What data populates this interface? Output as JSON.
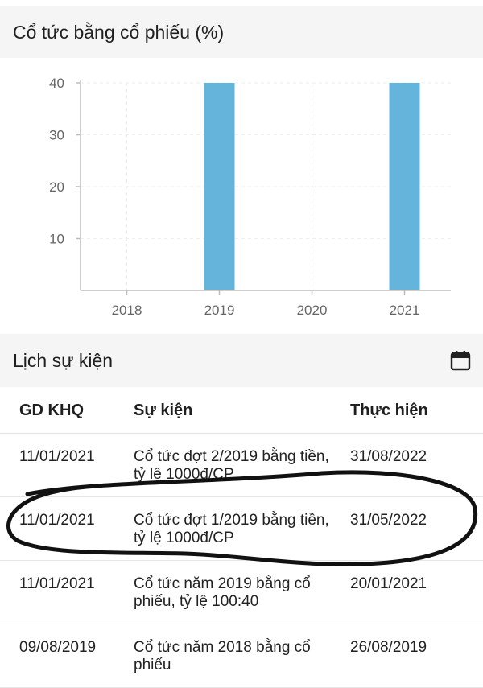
{
  "dividend_section": {
    "title": "Cổ tức bằng cổ phiếu (%)"
  },
  "chart_data": {
    "type": "bar",
    "title": "Cổ tức bằng cổ phiếu (%)",
    "categories": [
      "2018",
      "2019",
      "2020",
      "2021"
    ],
    "values": [
      0,
      40,
      0,
      40
    ],
    "yticks": [
      10,
      20,
      30,
      40
    ],
    "ylim": [
      0,
      40
    ],
    "xlabel": "",
    "ylabel": "",
    "grid": true,
    "bar_color": "#65b4dc"
  },
  "events_section": {
    "title": "Lịch sự kiện",
    "icon": "calendar-icon"
  },
  "events_table": {
    "headers": [
      "GD KHQ",
      "Sự kiện",
      "Thực hiện"
    ],
    "rows": [
      {
        "date": "11/01/2021",
        "event": "Cổ tức đợt 2/2019 bằng tiền, tỷ lệ 1000đ/CP",
        "execution": "31/08/2022"
      },
      {
        "date": "11/01/2021",
        "event": "Cổ tức đợt 1/2019 bằng tiền, tỷ lệ 1000đ/CP",
        "execution": "31/05/2022"
      },
      {
        "date": "11/01/2021",
        "event": "Cổ tức năm 2019 bằng cổ phiếu, tỷ lệ 100:40",
        "execution": "20/01/2021"
      },
      {
        "date": "09/08/2019",
        "event": "Cổ tức năm 2018 bằng cổ phiếu",
        "execution": "26/08/2019"
      }
    ]
  },
  "colors": {
    "header_bg": "#f5f5f5",
    "bar": "#65b4dc",
    "scribble": "#111111"
  }
}
